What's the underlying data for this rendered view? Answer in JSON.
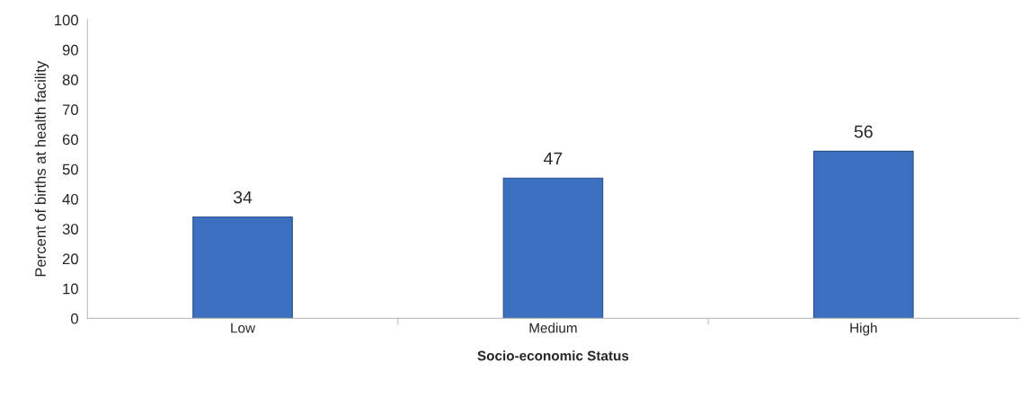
{
  "chart_data": {
    "type": "bar",
    "xlabel": "Socio-economic Status",
    "ylabel": "Percent of births at health facility",
    "categories": [
      "Low",
      "Medium",
      "High"
    ],
    "values": [
      34,
      47,
      56
    ],
    "color": "#3b6fbf",
    "ylim": [
      0,
      100
    ],
    "yticks": [
      0,
      10,
      20,
      30,
      40,
      50,
      60,
      70,
      80,
      90,
      100
    ],
    "grid": false,
    "data_labels": true,
    "legend": false
  }
}
